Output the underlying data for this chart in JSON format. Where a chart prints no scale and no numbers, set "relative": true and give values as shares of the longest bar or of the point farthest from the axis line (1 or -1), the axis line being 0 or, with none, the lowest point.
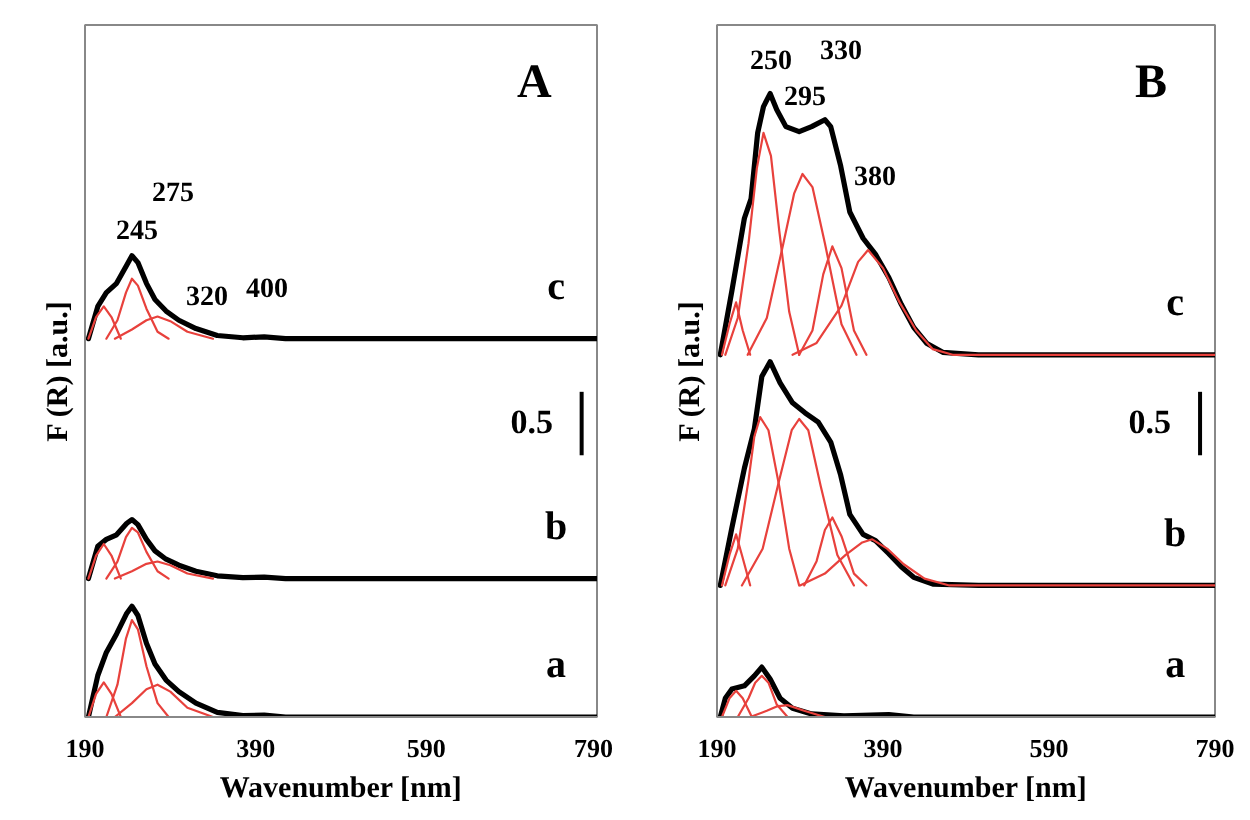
{
  "chart_data": [
    {
      "type": "line",
      "title": "A",
      "xlabel": "Wavenumber [nm]",
      "ylabel": "F (R) [a.u.]",
      "relative": true,
      "xlim": [
        190,
        790
      ],
      "xticks": [
        190,
        390,
        590,
        790
      ],
      "tick_labels": "x",
      "series": [
        {
          "name": "a",
          "color": "#000000",
          "x": [
            194,
            205,
            215,
            227,
            239,
            245,
            252,
            262,
            272,
            285,
            300,
            320,
            345,
            375,
            400,
            425,
            790
          ],
          "values": [
            0,
            0.09,
            0.14,
            0.18,
            0.225,
            0.24,
            0.22,
            0.16,
            0.115,
            0.08,
            0.055,
            0.03,
            0.01,
            0.003,
            0.004,
            0,
            0
          ]
        },
        {
          "color": "#e8413c",
          "x": [
            194,
            203,
            212,
            221,
            232
          ],
          "values": [
            0,
            0.05,
            0.075,
            0.05,
            0
          ]
        },
        {
          "color": "#e8413c",
          "x": [
            215,
            228,
            238,
            245,
            252,
            262,
            275,
            288
          ],
          "values": [
            0,
            0.07,
            0.17,
            0.21,
            0.19,
            0.11,
            0.03,
            0
          ]
        },
        {
          "color": "#e8413c",
          "x": [
            225,
            245,
            262,
            275,
            290,
            310,
            340
          ],
          "values": [
            0,
            0.03,
            0.06,
            0.07,
            0.055,
            0.02,
            0
          ]
        },
        {
          "name": "b",
          "color": "#000000",
          "x": [
            194,
            205,
            215,
            227,
            239,
            245,
            252,
            262,
            272,
            285,
            300,
            320,
            345,
            375,
            400,
            425,
            790
          ],
          "values": [
            0.3,
            0.37,
            0.385,
            0.395,
            0.42,
            0.428,
            0.417,
            0.385,
            0.36,
            0.342,
            0.329,
            0.316,
            0.306,
            0.302,
            0.303,
            0.3,
            0.3
          ]
        },
        {
          "color": "#e8413c",
          "x": [
            194,
            203,
            212,
            221,
            232
          ],
          "values": [
            0.3,
            0.35,
            0.375,
            0.35,
            0.3
          ]
        },
        {
          "color": "#e8413c",
          "x": [
            215,
            228,
            238,
            245,
            252,
            262,
            275,
            288
          ],
          "values": [
            0.3,
            0.337,
            0.39,
            0.41,
            0.4,
            0.358,
            0.316,
            0.3
          ]
        },
        {
          "color": "#e8413c",
          "x": [
            225,
            245,
            262,
            275,
            290,
            310,
            340
          ],
          "values": [
            0.3,
            0.316,
            0.332,
            0.337,
            0.329,
            0.311,
            0.3
          ]
        },
        {
          "name": "c",
          "color": "#000000",
          "x": [
            194,
            205,
            215,
            227,
            239,
            245,
            252,
            262,
            272,
            285,
            300,
            320,
            345,
            375,
            400,
            425,
            790
          ],
          "values": [
            0.82,
            0.89,
            0.92,
            0.94,
            0.98,
            1.0,
            0.985,
            0.94,
            0.905,
            0.88,
            0.86,
            0.842,
            0.827,
            0.822,
            0.824,
            0.82,
            0.82
          ]
        },
        {
          "color": "#e8413c",
          "x": [
            194,
            203,
            212,
            221,
            232
          ],
          "values": [
            0.82,
            0.867,
            0.89,
            0.867,
            0.82
          ]
        },
        {
          "color": "#e8413c",
          "x": [
            215,
            228,
            238,
            245,
            252,
            262,
            275,
            288
          ],
          "values": [
            0.82,
            0.86,
            0.92,
            0.95,
            0.935,
            0.885,
            0.835,
            0.82
          ]
        },
        {
          "color": "#e8413c",
          "x": [
            225,
            245,
            262,
            275,
            290,
            310,
            340
          ],
          "values": [
            0.82,
            0.84,
            0.86,
            0.868,
            0.858,
            0.835,
            0.82
          ]
        }
      ],
      "annotations": [
        "245",
        "275",
        "320",
        "400",
        "0.5"
      ]
    },
    {
      "type": "line",
      "title": "B",
      "xlabel": "Wavenumber [nm]",
      "ylabel": "F (R) [a.u.]",
      "relative": true,
      "xlim": [
        190,
        790
      ],
      "xticks": [
        190,
        390,
        590,
        790
      ],
      "tick_labels": "x",
      "series": [
        {
          "name": "a",
          "color": "#000000",
          "x": [
            194,
            200,
            208,
            223,
            235,
            244,
            254,
            266,
            281,
            304,
            343,
            397,
            427,
            790
          ],
          "values": [
            0,
            0.03,
            0.045,
            0.05,
            0.066,
            0.08,
            0.061,
            0.03,
            0.014,
            0.005,
            0.002,
            0.004,
            0,
            0
          ]
        },
        {
          "color": "#e8413c",
          "x": [
            196,
            205,
            213,
            221,
            232
          ],
          "values": [
            0,
            0.03,
            0.042,
            0.03,
            0
          ]
        },
        {
          "color": "#e8413c",
          "x": [
            215,
            228,
            236,
            244,
            252,
            262,
            275
          ],
          "values": [
            0,
            0.03,
            0.055,
            0.066,
            0.055,
            0.02,
            0
          ]
        },
        {
          "color": "#e8413c",
          "x": [
            230,
            250,
            262,
            275,
            295,
            320
          ],
          "values": [
            0,
            0.01,
            0.017,
            0.019,
            0.01,
            0
          ]
        },
        {
          "name": "b",
          "color": "#000000",
          "x": [
            194,
            208,
            223,
            235,
            244,
            254,
            266,
            281,
            296,
            312,
            327,
            339,
            350,
            366,
            381,
            397,
            412,
            427,
            451,
            505,
            790
          ],
          "values": [
            0.211,
            0.304,
            0.399,
            0.462,
            0.546,
            0.57,
            0.536,
            0.504,
            0.488,
            0.473,
            0.441,
            0.388,
            0.325,
            0.293,
            0.283,
            0.262,
            0.241,
            0.224,
            0.213,
            0.211,
            0.211
          ]
        },
        {
          "color": "#e8413c",
          "x": [
            196,
            205,
            213,
            221,
            230
          ],
          "values": [
            0.211,
            0.26,
            0.293,
            0.255,
            0.211
          ]
        },
        {
          "color": "#e8413c",
          "x": [
            200,
            215,
            228,
            235,
            242,
            252,
            265,
            277,
            289
          ],
          "values": [
            0.211,
            0.27,
            0.38,
            0.45,
            0.481,
            0.46,
            0.37,
            0.27,
            0.211
          ]
        },
        {
          "color": "#e8413c",
          "x": [
            220,
            245,
            265,
            280,
            289,
            300,
            315,
            335,
            355
          ],
          "values": [
            0.211,
            0.27,
            0.38,
            0.46,
            0.478,
            0.46,
            0.37,
            0.26,
            0.211
          ]
        },
        {
          "color": "#e8413c",
          "x": [
            295,
            310,
            320,
            329,
            340,
            355,
            370
          ],
          "values": [
            0.211,
            0.25,
            0.3,
            0.32,
            0.29,
            0.23,
            0.211
          ]
        },
        {
          "color": "#e8413c",
          "x": [
            290,
            320,
            345,
            365,
            377,
            395,
            415,
            440,
            470,
            790
          ],
          "values": [
            0.211,
            0.23,
            0.26,
            0.28,
            0.285,
            0.27,
            0.245,
            0.222,
            0.211,
            0.211
          ]
        },
        {
          "name": "c",
          "color": "#000000",
          "x": [
            194,
            208,
            223,
            231,
            239,
            246,
            254,
            262,
            273,
            289,
            304,
            320,
            327,
            339,
            350,
            366,
            381,
            397,
            412,
            427,
            443,
            462,
            505,
            790
          ],
          "values": [
            0.581,
            0.684,
            0.8,
            0.831,
            0.937,
            0.979,
            1.0,
            0.974,
            0.947,
            0.939,
            0.947,
            0.958,
            0.947,
            0.884,
            0.81,
            0.768,
            0.742,
            0.705,
            0.662,
            0.625,
            0.599,
            0.585,
            0.581,
            0.581
          ]
        },
        {
          "color": "#e8413c",
          "x": [
            196,
            205,
            213,
            221,
            230
          ],
          "values": [
            0.581,
            0.63,
            0.665,
            0.62,
            0.581
          ]
        },
        {
          "color": "#e8413c",
          "x": [
            200,
            215,
            228,
            238,
            246,
            255,
            265,
            277,
            289
          ],
          "values": [
            0.581,
            0.64,
            0.76,
            0.88,
            0.937,
            0.9,
            0.78,
            0.65,
            0.581
          ]
        },
        {
          "color": "#e8413c",
          "x": [
            227,
            250,
            270,
            283,
            293,
            305,
            320,
            340,
            358
          ],
          "values": [
            0.581,
            0.64,
            0.76,
            0.84,
            0.871,
            0.85,
            0.76,
            0.63,
            0.581
          ]
        },
        {
          "color": "#e8413c",
          "x": [
            289,
            305,
            318,
            329,
            340,
            355,
            370
          ],
          "values": [
            0.581,
            0.62,
            0.71,
            0.755,
            0.72,
            0.62,
            0.581
          ]
        },
        {
          "color": "#e8413c",
          "x": [
            281,
            310,
            340,
            360,
            372,
            390,
            410,
            430,
            450,
            474,
            790
          ],
          "values": [
            0.581,
            0.6,
            0.66,
            0.73,
            0.749,
            0.72,
            0.665,
            0.62,
            0.59,
            0.581,
            0.581
          ]
        }
      ],
      "annotations": [
        "250",
        "330",
        "295",
        "380",
        "0.5"
      ]
    }
  ]
}
